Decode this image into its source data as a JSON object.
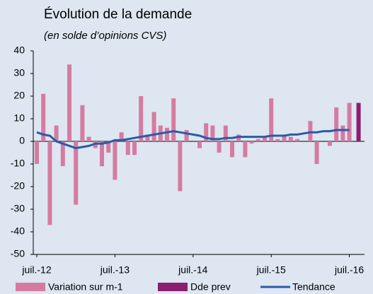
{
  "chart_data": {
    "type": "bar",
    "title": "Évolution de la demande",
    "subtitle": "(en solde d’opinions CVS)",
    "categories": [
      "juil.-12",
      null,
      null,
      null,
      null,
      null,
      null,
      null,
      null,
      null,
      null,
      null,
      "juil.-13",
      null,
      null,
      null,
      null,
      null,
      null,
      null,
      null,
      null,
      null,
      null,
      "juil.-14",
      null,
      null,
      null,
      null,
      null,
      null,
      null,
      null,
      null,
      null,
      null,
      "juil.-15",
      null,
      null,
      null,
      null,
      null,
      null,
      null,
      null,
      null,
      null,
      null,
      "juil.-16"
    ],
    "series": [
      {
        "name": "Variation sur m-1",
        "type": "bar",
        "color": "#d57ba1",
        "values": [
          -10,
          21,
          -37,
          7,
          -11,
          34,
          -28,
          16,
          2,
          -3,
          -11,
          -5,
          -17,
          4,
          -6,
          -6,
          20,
          3,
          13,
          7,
          6,
          19,
          -22,
          5,
          0,
          -3,
          8,
          7,
          -5,
          7,
          -7,
          3,
          -7,
          -1,
          1,
          2,
          19,
          1,
          3,
          2,
          1,
          0,
          9,
          -10,
          0,
          -2,
          15,
          7,
          17
        ]
      },
      {
        "name": "Dde prev",
        "type": "bar",
        "color": "#8b1e6e",
        "values": [
          null,
          null,
          null,
          null,
          null,
          null,
          null,
          null,
          null,
          null,
          null,
          null,
          null,
          null,
          null,
          null,
          null,
          null,
          null,
          null,
          null,
          null,
          null,
          null,
          null,
          null,
          null,
          null,
          null,
          null,
          null,
          null,
          null,
          null,
          null,
          null,
          null,
          null,
          null,
          null,
          null,
          null,
          null,
          null,
          null,
          null,
          null,
          null,
          17
        ]
      },
      {
        "name": "Tendance",
        "type": "line",
        "color": "#2c5aa6",
        "values": [
          4,
          3,
          2.5,
          0,
          -1,
          -2,
          -3,
          -2.5,
          -2,
          -1,
          -1,
          -0.5,
          0.5,
          0.5,
          1,
          1.5,
          2,
          2.5,
          3,
          3.5,
          4,
          4.5,
          4,
          3.5,
          3,
          2.5,
          1.5,
          1,
          1,
          1.5,
          1.5,
          2,
          2,
          2,
          2,
          2,
          2.5,
          2.5,
          2.5,
          3,
          3,
          3.5,
          4,
          4,
          4.5,
          4.5,
          5,
          5,
          5
        ]
      }
    ],
    "ylim": [
      -50,
      40
    ],
    "yticks": [
      -50,
      -40,
      -30,
      -20,
      -10,
      0,
      10,
      20,
      30,
      40
    ]
  }
}
